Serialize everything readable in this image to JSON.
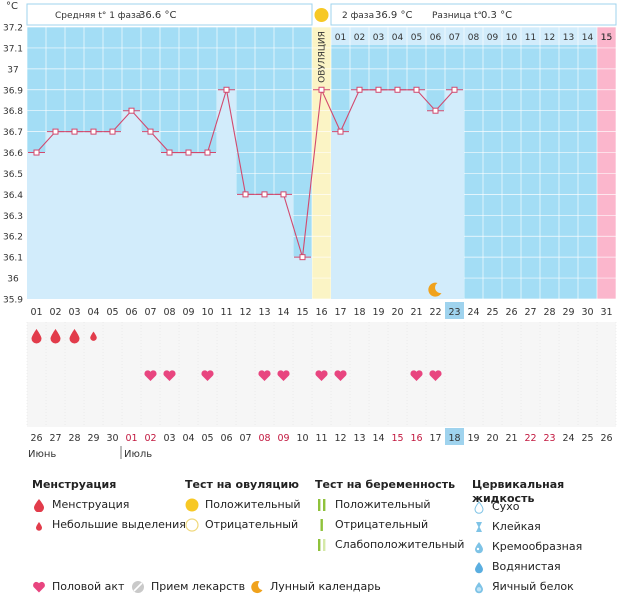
{
  "chart_data": {
    "type": "line",
    "title": "",
    "ylabel": "°C",
    "ylim": [
      35.9,
      37.2
    ],
    "y_ticks": [
      "35.9",
      "36",
      "36.1",
      "36.2",
      "36.3",
      "36.4",
      "36.5",
      "36.6",
      "36.7",
      "36.8",
      "36.9",
      "37",
      "37.1",
      "37.2"
    ],
    "cycle_days": [
      "01",
      "02",
      "03",
      "04",
      "05",
      "06",
      "07",
      "08",
      "09",
      "10",
      "11",
      "12",
      "13",
      "14",
      "15",
      "16",
      "17",
      "18",
      "19",
      "20",
      "21",
      "22",
      "23",
      "24",
      "25",
      "26",
      "27",
      "28",
      "29",
      "30",
      "31"
    ],
    "temperatures": [
      36.6,
      36.7,
      36.7,
      36.7,
      36.7,
      36.8,
      36.7,
      36.6,
      36.6,
      36.6,
      36.9,
      36.4,
      36.4,
      36.4,
      36.1,
      36.9,
      36.7,
      36.9,
      36.9,
      36.9,
      36.9,
      36.8,
      36.9
    ],
    "today_day": "23",
    "ovulation_day": 16,
    "ovulation_label": "ОВУЛЯЦИЯ",
    "phase2_days": [
      "01",
      "02",
      "03",
      "04",
      "05",
      "06",
      "07",
      "08",
      "09",
      "10",
      "11",
      "12",
      "13",
      "14",
      "15"
    ],
    "phase2_last_label": "15",
    "phase1_label": "Средняя t° 1 фаза",
    "phase1_value": "36.6 °C",
    "phase2_label": "2 фаза",
    "phase2_value": "36.9 °C",
    "diff_label": "Разница t°",
    "diff_value": "0.3 °C",
    "menstruation": [
      {
        "day": 1,
        "size": "big"
      },
      {
        "day": 2,
        "size": "big"
      },
      {
        "day": 3,
        "size": "big"
      },
      {
        "day": 4,
        "size": "small"
      }
    ],
    "intercourse_days": [
      7,
      8,
      10,
      13,
      14,
      16,
      17,
      21,
      22
    ],
    "moon_day": 22,
    "calendar_dates": [
      "26",
      "27",
      "28",
      "29",
      "30",
      "01",
      "02",
      "03",
      "04",
      "05",
      "06",
      "07",
      "08",
      "09",
      "10",
      "11",
      "12",
      "13",
      "14",
      "15",
      "16",
      "17",
      "18",
      "19",
      "20",
      "21",
      "22",
      "23",
      "24",
      "25",
      "26"
    ],
    "weekend_date_indices": [
      5,
      6,
      12,
      13,
      19,
      20,
      26,
      27
    ],
    "today_date": "18",
    "month1": "Июнь",
    "month2": "Июль"
  },
  "colors": {
    "blue": "#a3ddf5",
    "light": "#d2ecfb",
    "pink": "#fbb6cc",
    "ovulation": "#fbf4c5",
    "line": "#d2496e",
    "heart": "#e8457f",
    "drop": "#e23c4b",
    "today": "#9fd3ee",
    "weekend": "#c2183f",
    "sun": "#f7c825",
    "moon": "#f0a21c",
    "green": "#8fc23b"
  },
  "legend": {
    "menstruation_title": "Менструация",
    "menstruation_item": "Менструация",
    "spotting_item": "Небольшие выделения",
    "ovulation_test_title": "Тест на овуляцию",
    "positive": "Положительный",
    "negative": "Отрицательный",
    "pregnancy_test_title": "Тест на беременность",
    "preg_positive": "Положительный",
    "preg_negative": "Отрицательный",
    "preg_weak": "Слабоположительный",
    "cervical_title": "Цервикальная жидкость",
    "dry": "Сухо",
    "sticky": "Клейкая",
    "creamy": "Кремообразная",
    "watery": "Водянистая",
    "eggwhite": "Яичный белок",
    "intercourse": "Половой акт",
    "medication": "Прием лекарств",
    "lunar": "Лунный календарь"
  },
  "icons": [
    "drop-icon",
    "small-drop-icon",
    "sun-icon",
    "moon-icon",
    "heart-icon",
    "pill-icon",
    "test-strip-icon",
    "cervical-drop-icon"
  ]
}
